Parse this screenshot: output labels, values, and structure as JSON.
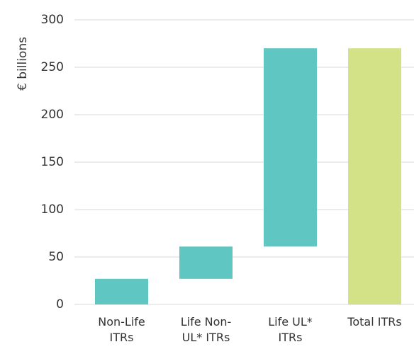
{
  "chart_data": {
    "type": "waterfall",
    "y_label": "€ billions",
    "categories": [
      "Non-Life ITRs",
      "Life Non-UL* ITRs",
      "Life UL* ITRs",
      "Total ITRs"
    ],
    "values": [
      27,
      34,
      209,
      270
    ],
    "is_total": [
      false,
      false,
      false,
      true
    ],
    "colors": [
      "#5fc6c1",
      "#5fc6c1",
      "#5fc6c1",
      "#d4e287"
    ],
    "ylim": [
      0,
      300
    ],
    "yticks": [
      0,
      50,
      100,
      150,
      200,
      250,
      300
    ],
    "grid": true
  }
}
